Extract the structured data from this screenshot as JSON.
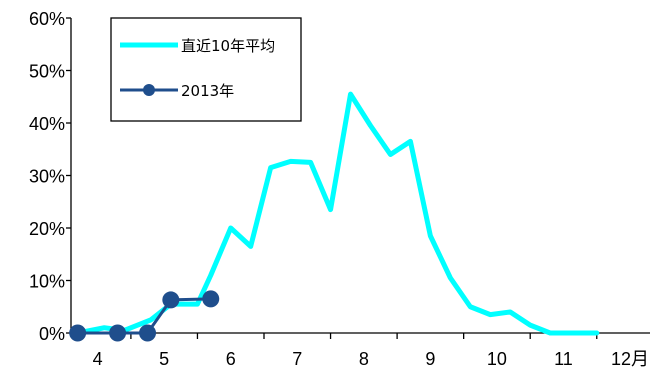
{
  "chart_data": {
    "type": "line",
    "title": "",
    "xlabel": "",
    "ylabel": "",
    "x_ticks": [
      "4",
      "5",
      "6",
      "7",
      "8",
      "9",
      "10",
      "11",
      "12月"
    ],
    "y_ticks": [
      "0%",
      "10%",
      "20%",
      "30%",
      "40%",
      "50%",
      "60%"
    ],
    "ylim": [
      0,
      60
    ],
    "xlim": [
      3.6,
      12.3
    ],
    "grid": false,
    "legend_position": "top-left",
    "series": [
      {
        "name": "直近10年平均",
        "color": "#00ffff",
        "marker": "none",
        "x": [
          3.7,
          4.1,
          4.4,
          4.8,
          5.1,
          5.5,
          5.7,
          6.0,
          6.3,
          6.6,
          6.9,
          7.2,
          7.5,
          7.8,
          8.1,
          8.4,
          8.7,
          9.0,
          9.3,
          9.6,
          9.9,
          10.2,
          10.5,
          10.8,
          11.1,
          11.5
        ],
        "y": [
          0,
          1,
          0.5,
          2.5,
          5.5,
          5.5,
          11,
          20,
          16.5,
          31.5,
          32.7,
          32.5,
          23.5,
          45.5,
          39.5,
          34,
          36.5,
          18.5,
          10.5,
          5,
          3.5,
          4,
          1.5,
          0,
          0,
          0
        ]
      },
      {
        "name": "2013年",
        "color": "#1f4e8c",
        "marker": "circle",
        "x": [
          3.7,
          4.3,
          4.75,
          5.1,
          5.7
        ],
        "y": [
          0,
          0,
          0,
          6.3,
          6.5
        ]
      }
    ]
  }
}
